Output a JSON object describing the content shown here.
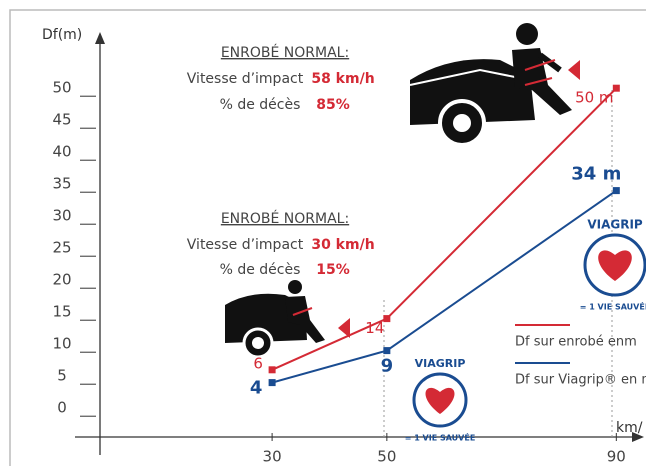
{
  "chart_data": {
    "type": "line",
    "y_label": "Df(m)",
    "x_label": "km/",
    "x": [
      30,
      50,
      90
    ],
    "xlim": [
      0,
      95
    ],
    "xticks": [
      30,
      50,
      90
    ],
    "ylim": [
      -4.5,
      58
    ],
    "yticks": [
      0,
      5,
      10,
      15,
      20,
      25,
      30,
      35,
      40,
      45,
      50
    ],
    "legend": "lower right",
    "series": [
      {
        "name": "Df sur enrobé enm",
        "color": "#d42a35",
        "values": [
          6,
          14,
          50
        ],
        "value_labels": [
          "6",
          "14",
          "50 m"
        ]
      },
      {
        "name": "Df sur Viagrip® en m",
        "color": "#1a4c91",
        "values": [
          4,
          9,
          34
        ],
        "value_labels": [
          "4",
          "9",
          "34 m"
        ]
      }
    ],
    "annotations": [
      {
        "heading": "ENROBÉ NORMAL:",
        "line1": "Vitesse d’impact",
        "speed": "58 km/h",
        "line2": "% de décès",
        "rate": "85%"
      },
      {
        "heading": "ENROBÉ NORMAL:",
        "line1": "Vitesse d’impact",
        "speed": "30 km/h",
        "line2": "% de décès",
        "rate": "15%"
      }
    ],
    "badge": {
      "name": "VIAGRIP",
      "tagline": "= 1 VIE SAUVÉE"
    }
  }
}
